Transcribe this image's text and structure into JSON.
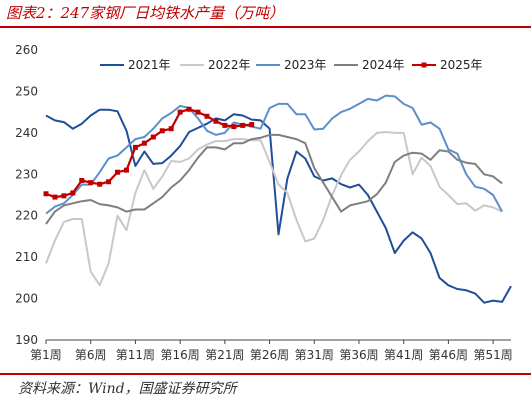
{
  "figure": {
    "title": "图表2：247家钢厂日均铁水产量（万吨）",
    "source": "资料来源：Wind，国盛证券研究所"
  },
  "chart_data": {
    "type": "line",
    "title": "",
    "xlabel": "",
    "ylabel": "",
    "x_range": [
      1,
      53
    ],
    "ylim": [
      190,
      260
    ],
    "y_ticks": [
      190,
      200,
      210,
      220,
      230,
      240,
      250,
      260
    ],
    "x_ticks": [
      {
        "x": 1,
        "label": "第1周"
      },
      {
        "x": 6,
        "label": "第6周"
      },
      {
        "x": 11,
        "label": "第11周"
      },
      {
        "x": 16,
        "label": "第16周"
      },
      {
        "x": 21,
        "label": "第21周"
      },
      {
        "x": 26,
        "label": "第26周"
      },
      {
        "x": 31,
        "label": "第31周"
      },
      {
        "x": 36,
        "label": "第36周"
      },
      {
        "x": 41,
        "label": "第41周"
      },
      {
        "x": 46,
        "label": "第46周"
      },
      {
        "x": 51,
        "label": "第51周"
      }
    ],
    "grid": false,
    "legend_position": "top",
    "series": [
      {
        "name": "2021年",
        "color": "#1f4e9c",
        "marker": "none",
        "x": [
          1,
          2,
          3,
          4,
          5,
          6,
          7,
          8,
          9,
          10,
          11,
          12,
          13,
          14,
          15,
          16,
          17,
          18,
          19,
          20,
          21,
          22,
          23,
          24,
          25,
          26,
          27,
          28,
          29,
          30,
          31,
          32,
          33,
          34,
          35,
          36,
          37,
          38,
          39,
          40,
          41,
          42,
          43,
          44,
          45,
          46,
          47,
          48,
          49,
          50,
          51,
          52,
          53
        ],
        "values": [
          244.2,
          243.0,
          242.6,
          241.0,
          242.2,
          244.2,
          245.6,
          245.6,
          245.2,
          240.5,
          232.0,
          235.5,
          232.5,
          232.7,
          234.5,
          236.8,
          240.2,
          241.2,
          242.2,
          243.5,
          243.0,
          244.5,
          244.2,
          243.2,
          243.0,
          241.0,
          215.5,
          229.0,
          235.5,
          233.8,
          229.5,
          228.5,
          229.0,
          227.6,
          226.8,
          227.5,
          225.0,
          221.0,
          217.0,
          211.0,
          214.0,
          216.0,
          214.5,
          211.0,
          205.0,
          203.2,
          202.3,
          202.0,
          201.2,
          199.0,
          199.5,
          199.2,
          203.0
        ]
      },
      {
        "name": "2022年",
        "color": "#c8c8c8",
        "marker": "none",
        "x": [
          1,
          2,
          3,
          4,
          5,
          6,
          7,
          8,
          9,
          10,
          11,
          12,
          13,
          14,
          15,
          16,
          17,
          18,
          19,
          20,
          21,
          22,
          23,
          24,
          25,
          26,
          27,
          28,
          29,
          30,
          31,
          32,
          33,
          34,
          35,
          36,
          37,
          38,
          39,
          40,
          41,
          42,
          43,
          44,
          45,
          46,
          47,
          48,
          49,
          50,
          51,
          52
        ],
        "values": [
          208.5,
          214.0,
          218.5,
          219.2,
          219.2,
          206.5,
          203.2,
          208.5,
          220.0,
          216.5,
          225.5,
          231.0,
          226.5,
          229.5,
          233.2,
          233.0,
          233.8,
          236.0,
          237.2,
          238.0,
          238.0,
          238.5,
          238.5,
          238.2,
          238.2,
          233.0,
          227.5,
          225.5,
          219.0,
          213.8,
          214.5,
          219.0,
          225.0,
          229.8,
          233.5,
          235.5,
          238.0,
          240.0,
          240.2,
          240.0,
          240.0,
          230.0,
          234.0,
          232.0,
          227.0,
          225.0,
          222.8,
          223.0,
          221.2,
          222.5,
          222.0,
          221.0
        ]
      },
      {
        "name": "2023年",
        "color": "#5b8fcc",
        "marker": "none",
        "x": [
          1,
          2,
          3,
          4,
          5,
          6,
          7,
          8,
          9,
          10,
          11,
          12,
          13,
          14,
          15,
          16,
          17,
          18,
          19,
          20,
          21,
          22,
          23,
          24,
          25,
          26,
          27,
          28,
          29,
          30,
          31,
          32,
          33,
          34,
          35,
          36,
          37,
          38,
          39,
          40,
          41,
          42,
          43,
          44,
          45,
          46,
          47,
          48,
          49,
          50,
          51,
          52
        ],
        "values": [
          220.5,
          222.2,
          223.0,
          225.0,
          227.5,
          227.5,
          230.5,
          233.8,
          234.5,
          236.5,
          238.5,
          239.0,
          241.0,
          243.5,
          244.8,
          246.5,
          246.0,
          243.5,
          240.5,
          239.5,
          240.0,
          242.5,
          242.0,
          241.5,
          241.0,
          246.0,
          247.0,
          247.0,
          244.5,
          244.5,
          240.8,
          241.0,
          243.5,
          245.0,
          245.8,
          247.0,
          248.2,
          247.8,
          249.0,
          248.8,
          247.0,
          246.0,
          242.0,
          242.5,
          241.0,
          236.0,
          235.0,
          230.0,
          227.0,
          226.5,
          225.0,
          221.0
        ]
      },
      {
        "name": "2024年",
        "color": "#7f7f7f",
        "marker": "none",
        "x": [
          1,
          2,
          3,
          4,
          5,
          6,
          7,
          8,
          9,
          10,
          11,
          12,
          13,
          14,
          15,
          16,
          17,
          18,
          19,
          20,
          21,
          22,
          23,
          24,
          25,
          26,
          27,
          28,
          29,
          30,
          31,
          32,
          33,
          34,
          35,
          36,
          37,
          38,
          39,
          40,
          41,
          42,
          43,
          44,
          45,
          46,
          47,
          48,
          49,
          50,
          51,
          52
        ],
        "values": [
          218.0,
          221.0,
          222.5,
          223.0,
          223.5,
          223.8,
          222.8,
          222.5,
          222.0,
          221.0,
          221.5,
          221.5,
          223.0,
          224.5,
          226.8,
          228.5,
          231.0,
          234.0,
          236.5,
          236.5,
          236.0,
          237.5,
          237.5,
          238.5,
          238.8,
          239.5,
          239.5,
          239.0,
          238.5,
          237.5,
          231.5,
          228.0,
          224.5,
          221.0,
          222.5,
          223.0,
          223.5,
          225.2,
          228.0,
          233.0,
          234.5,
          235.2,
          235.0,
          233.5,
          235.8,
          235.5,
          233.5,
          232.8,
          232.5,
          230.0,
          229.5,
          227.8
        ]
      },
      {
        "name": "2025年",
        "color": "#c00000",
        "marker": "square",
        "x": [
          1,
          2,
          3,
          4,
          5,
          6,
          7,
          8,
          9,
          10,
          11,
          12,
          13,
          14,
          15,
          16,
          17,
          18,
          19,
          20,
          21,
          22,
          23,
          24
        ],
        "values": [
          225.3,
          224.5,
          224.8,
          225.5,
          228.5,
          228.0,
          227.6,
          228.2,
          230.5,
          231.0,
          236.5,
          237.5,
          239.0,
          240.5,
          241.0,
          245.0,
          245.7,
          245.0,
          244.0,
          242.8,
          241.8,
          241.5,
          241.8,
          242.0
        ]
      }
    ]
  }
}
